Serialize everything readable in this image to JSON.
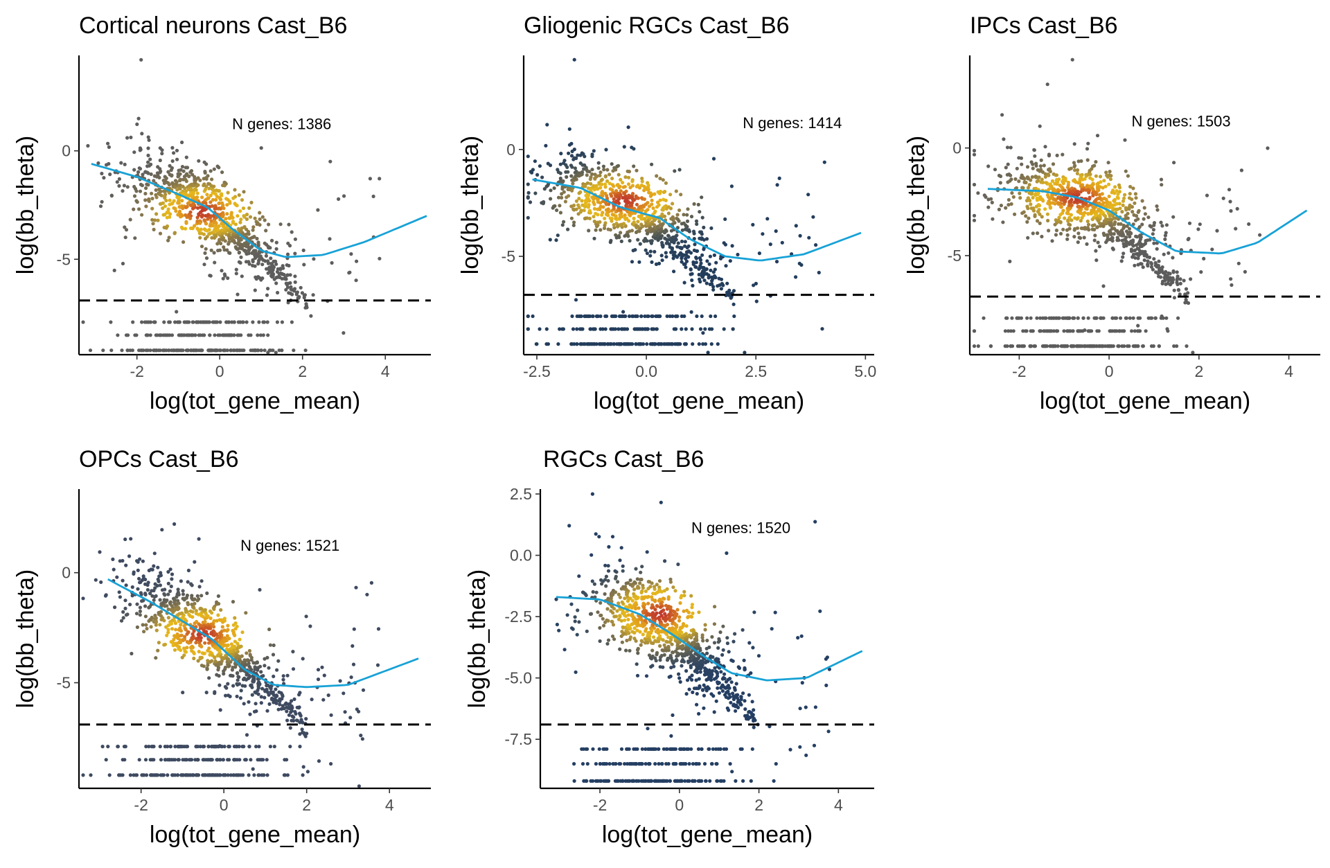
{
  "chart_data": [
    {
      "type": "scatter",
      "title": "Cortical neurons Cast_B6",
      "xlabel": "log(tot_gene_mean)",
      "ylabel": "log(bb_theta)",
      "xlim": [
        -3.4,
        5.1
      ],
      "ylim": [
        -9.4,
        4.4
      ],
      "xticks": [
        -2,
        0,
        2,
        4
      ],
      "xtick_labels": [
        "-2",
        "0",
        "2",
        "4"
      ],
      "yticks": [
        0,
        -5
      ],
      "ytick_labels": [
        "0",
        "-5"
      ],
      "annotation": "N genes: 1386",
      "annotation_pos": [
        0.3,
        1.0
      ],
      "threshold_y": -6.9,
      "low_color": "#5d5d5d",
      "density_center": [
        -0.4,
        -2.8
      ],
      "smooth_x": [
        -3.1,
        -2.0,
        -1.0,
        -0.3,
        0.3,
        1.0,
        1.6,
        2.5,
        3.5,
        5.0
      ],
      "smooth_y": [
        -0.6,
        -1.2,
        -2.0,
        -2.6,
        -3.6,
        -4.6,
        -4.9,
        -4.8,
        -4.2,
        -3.0
      ]
    },
    {
      "type": "scatter",
      "title": "Gliogenic RGCs Cast_B6",
      "xlabel": "log(tot_gene_mean)",
      "ylabel": "log(bb_theta)",
      "xlim": [
        -2.8,
        5.2
      ],
      "ylim": [
        -9.6,
        4.4
      ],
      "xticks": [
        -2.5,
        0,
        2.5,
        5
      ],
      "xtick_labels": [
        "-2.5",
        "0.0",
        "2.5",
        "5.0"
      ],
      "yticks": [
        0,
        -5
      ],
      "ytick_labels": [
        "0",
        "-5"
      ],
      "annotation": "N genes: 1414",
      "annotation_pos": [
        2.2,
        1.0
      ],
      "threshold_y": -6.8,
      "low_color": "#233d5c",
      "density_center": [
        -0.5,
        -2.4
      ],
      "smooth_x": [
        -2.6,
        -1.5,
        -0.6,
        0.3,
        1.0,
        1.8,
        2.6,
        3.6,
        4.9
      ],
      "smooth_y": [
        -1.4,
        -1.8,
        -2.7,
        -3.2,
        -4.2,
        -5.0,
        -5.2,
        -4.9,
        -3.9
      ]
    },
    {
      "type": "scatter",
      "title": "IPCs Cast_B6",
      "xlabel": "log(tot_gene_mean)",
      "ylabel": "log(bb_theta)",
      "xlim": [
        -3.1,
        4.7
      ],
      "ylim": [
        -9.6,
        4.3
      ],
      "xticks": [
        -2,
        0,
        2,
        4
      ],
      "xtick_labels": [
        "-2",
        "0",
        "2",
        "4"
      ],
      "yticks": [
        0,
        -5
      ],
      "ytick_labels": [
        "0",
        "-5"
      ],
      "annotation": "N genes: 1503",
      "annotation_pos": [
        0.5,
        1.0
      ],
      "threshold_y": -6.9,
      "low_color": "#5c5c5c",
      "density_center": [
        -0.7,
        -2.3
      ],
      "smooth_x": [
        -2.7,
        -1.5,
        -0.7,
        0.0,
        0.7,
        1.5,
        2.5,
        3.3,
        4.4
      ],
      "smooth_y": [
        -1.9,
        -2.0,
        -2.3,
        -2.9,
        -3.9,
        -4.8,
        -4.9,
        -4.4,
        -2.9
      ]
    },
    {
      "type": "scatter",
      "title": "OPCs Cast_B6",
      "xlabel": "log(tot_gene_mean)",
      "ylabel": "log(bb_theta)",
      "xlim": [
        -3.5,
        5.0
      ],
      "ylim": [
        -9.8,
        3.8
      ],
      "xticks": [
        -2,
        0,
        2,
        4
      ],
      "xtick_labels": [
        "-2",
        "0",
        "2",
        "4"
      ],
      "yticks": [
        0,
        -5
      ],
      "ytick_labels": [
        "0",
        "-5"
      ],
      "annotation": "N genes: 1521",
      "annotation_pos": [
        0.4,
        1.0
      ],
      "threshold_y": -6.9,
      "low_color": "#3e4a60",
      "density_center": [
        -0.5,
        -2.8
      ],
      "smooth_x": [
        -2.8,
        -1.8,
        -1.0,
        -0.3,
        0.5,
        1.2,
        2.0,
        3.0,
        4.7
      ],
      "smooth_y": [
        -0.3,
        -1.3,
        -2.2,
        -3.0,
        -4.4,
        -5.1,
        -5.2,
        -5.1,
        -3.9
      ]
    },
    {
      "type": "scatter",
      "title": "RGCs Cast_B6",
      "xlabel": "log(tot_gene_mean)",
      "ylabel": "log(bb_theta)",
      "xlim": [
        -3.5,
        4.9
      ],
      "ylim": [
        -9.5,
        2.7
      ],
      "xticks": [
        -2,
        0,
        2,
        4
      ],
      "xtick_labels": [
        "-2",
        "0",
        "2",
        "4"
      ],
      "yticks": [
        2.5,
        0,
        -2.5,
        -5,
        -7.5
      ],
      "ytick_labels": [
        "2.5",
        "0.0",
        "-2.5",
        "-5.0",
        "-7.5"
      ],
      "annotation": "N genes: 1520",
      "annotation_pos": [
        0.3,
        0.9
      ],
      "threshold_y": -6.9,
      "low_color": "#253f63",
      "density_center": [
        -0.5,
        -2.4
      ],
      "smooth_x": [
        -3.1,
        -2.0,
        -1.0,
        -0.2,
        0.6,
        1.3,
        2.2,
        3.2,
        4.6
      ],
      "smooth_y": [
        -1.7,
        -1.8,
        -2.4,
        -3.2,
        -4.1,
        -4.8,
        -5.1,
        -5.0,
        -3.9
      ]
    }
  ]
}
